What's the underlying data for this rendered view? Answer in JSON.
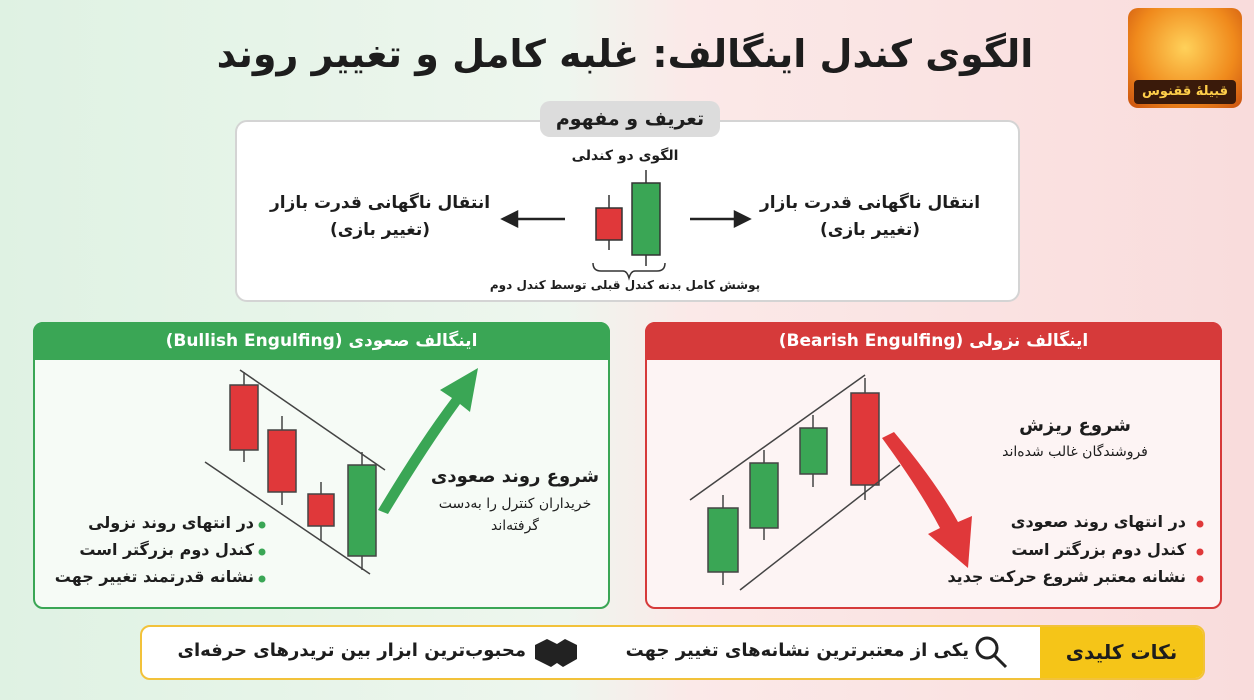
{
  "title": "الگوی کندل اینگالف: غلبه کامل و تغییر روند",
  "logo": "قبیلهٔ ققنوس",
  "definition": {
    "header": "تعریف و مفهوم",
    "subtitle": "الگوی دو کندلی",
    "left": [
      "انتقال ناگهانی قدرت بازار",
      "(تغییر بازی)"
    ],
    "right": [
      "انتقال ناگهانی قدرت بازار",
      "(تغییر بازی)"
    ],
    "caption": "پوشش کامل بدنه کندل قبلی توسط کندل دوم"
  },
  "panels": [
    {
      "header": "اینگالف صعودی (Bullish Engulfing)",
      "headline": "شروع روند صعودی",
      "sub": [
        "خریداران کنترل را به‌دست",
        "گرفته‌اند"
      ],
      "bullets": [
        "در انتهای روند نزولی",
        "کندل دوم بزرگتر است",
        "نشانه قدرتمند تغییر جهت"
      ]
    },
    {
      "header": "اینگالف نزولی (Bearish Engulfing)",
      "headline": "شروع ریزش",
      "sub": [
        "فروشندگان غالب شده‌اند"
      ],
      "bullets": [
        "در انتهای روند صعودی",
        "کندل دوم بزرگتر است",
        "نشانه معتبر شروع حرکت جدید"
      ]
    }
  ],
  "footer": {
    "label": "نکات کلیدی",
    "items": [
      "یکی از معتبرترین نشانه‌های تغییر جهت",
      "محبوب‌ترین ابزار بین تریدرهای حرفه‌ای"
    ]
  }
}
